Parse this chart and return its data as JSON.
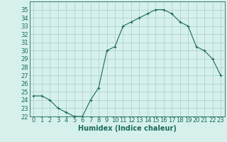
{
  "hours": [
    0,
    1,
    2,
    3,
    4,
    5,
    6,
    7,
    8,
    9,
    10,
    11,
    12,
    13,
    14,
    15,
    16,
    17,
    18,
    19,
    20,
    21,
    22,
    23
  ],
  "values": [
    24.5,
    24.5,
    24.0,
    23.0,
    22.5,
    22.0,
    22.0,
    24.0,
    25.5,
    30.0,
    30.5,
    33.0,
    33.5,
    34.0,
    34.5,
    35.0,
    35.0,
    34.5,
    33.5,
    33.0,
    30.5,
    30.0,
    29.0,
    27.0
  ],
  "line_color": "#1a6b5a",
  "marker": "+",
  "bg_color": "#d6f0ec",
  "grid_color": "#a8ceca",
  "xlabel": "Humidex (Indice chaleur)",
  "ylim": [
    22,
    36
  ],
  "yticks": [
    22,
    23,
    24,
    25,
    26,
    27,
    28,
    29,
    30,
    31,
    32,
    33,
    34,
    35
  ],
  "axis_color": "#1a6b5a",
  "tick_label_color": "#1a6b5a",
  "xlabel_color": "#1a6b5a",
  "font_size": 6,
  "xlabel_fontsize": 7
}
